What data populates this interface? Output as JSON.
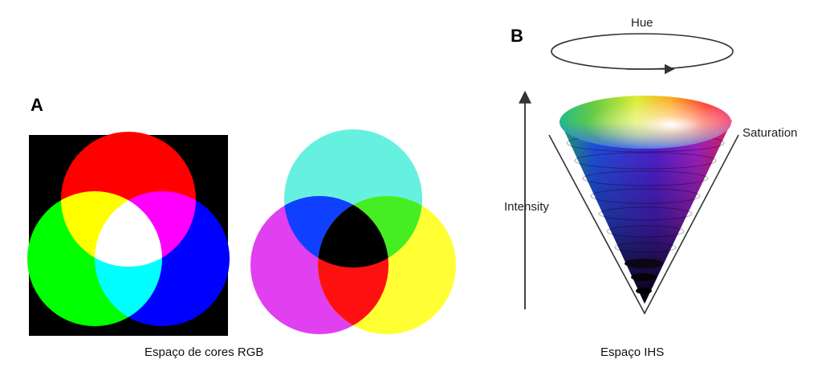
{
  "panel_a": {
    "letter": "A",
    "caption": "Espaço de cores RGB",
    "additive_colors": {
      "background": "#000000",
      "red": "#ff0000",
      "green": "#00ff00",
      "blue": "#0000ff",
      "yellow": "#ffff00",
      "magenta": "#ff00ff",
      "cyan": "#00ffff",
      "white": "#ffffff"
    },
    "subtractive_colors": {
      "cyan": "#66f0e0",
      "magenta": "#e040f0",
      "yellow": "#ffff33",
      "blue": "#1040ff",
      "green": "#44ee22",
      "red": "#ff1010",
      "black": "#000000"
    }
  },
  "panel_b": {
    "letter": "B",
    "caption": "Espaço IHS",
    "labels": {
      "hue": "Hue",
      "saturation": "Saturation",
      "intensity": "Intensity"
    }
  }
}
